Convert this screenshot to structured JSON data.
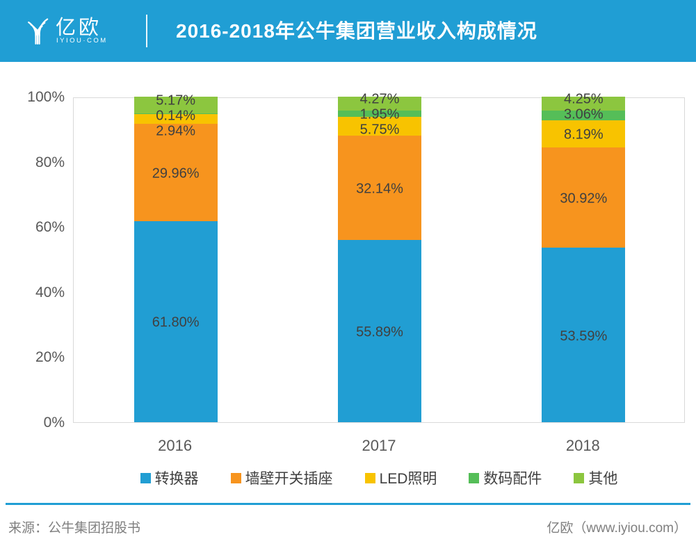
{
  "header": {
    "logo_text": "亿欧",
    "logo_subtext": "IYIOU·COM",
    "title": "2016-2018年公牛集团营业收入构成情况",
    "bg_color": "#209ED4"
  },
  "chart_data": {
    "type": "bar",
    "stacked": true,
    "title": "2016-2018年公牛集团营业收入构成情况",
    "categories": [
      "2016",
      "2017",
      "2018"
    ],
    "series": [
      {
        "key": "converter",
        "name": "转换器",
        "color": "#219ED3",
        "values": [
          61.8,
          55.89,
          53.59
        ]
      },
      {
        "key": "wall-switch-socket",
        "name": "墙壁开关插座",
        "color": "#F7941E",
        "values": [
          29.96,
          32.14,
          30.92
        ]
      },
      {
        "key": "led-lighting",
        "name": "LED照明",
        "color": "#F8C300",
        "values": [
          2.94,
          5.75,
          8.19
        ]
      },
      {
        "key": "digital-accessories",
        "name": "数码配件",
        "color": "#55BE58",
        "values": [
          0.14,
          1.95,
          3.06
        ]
      },
      {
        "key": "others",
        "name": "其他",
        "color": "#8CC63F",
        "values": [
          5.17,
          4.27,
          4.25
        ]
      }
    ],
    "value_label_suffix": "%",
    "y_ticks": [
      "100%",
      "80%",
      "60%",
      "40%",
      "20%",
      "0%"
    ],
    "ylim": [
      0,
      100
    ],
    "grid": false,
    "legend_position": "bottom",
    "colors": {
      "label_text": "#404040",
      "axis_text": "#595959",
      "plot_border": "#d9d9d9"
    }
  },
  "footer": {
    "source": "来源：公牛集团招股书",
    "credit": "亿欧（www.iyiou.com）",
    "accent_color": "#209ED4"
  }
}
